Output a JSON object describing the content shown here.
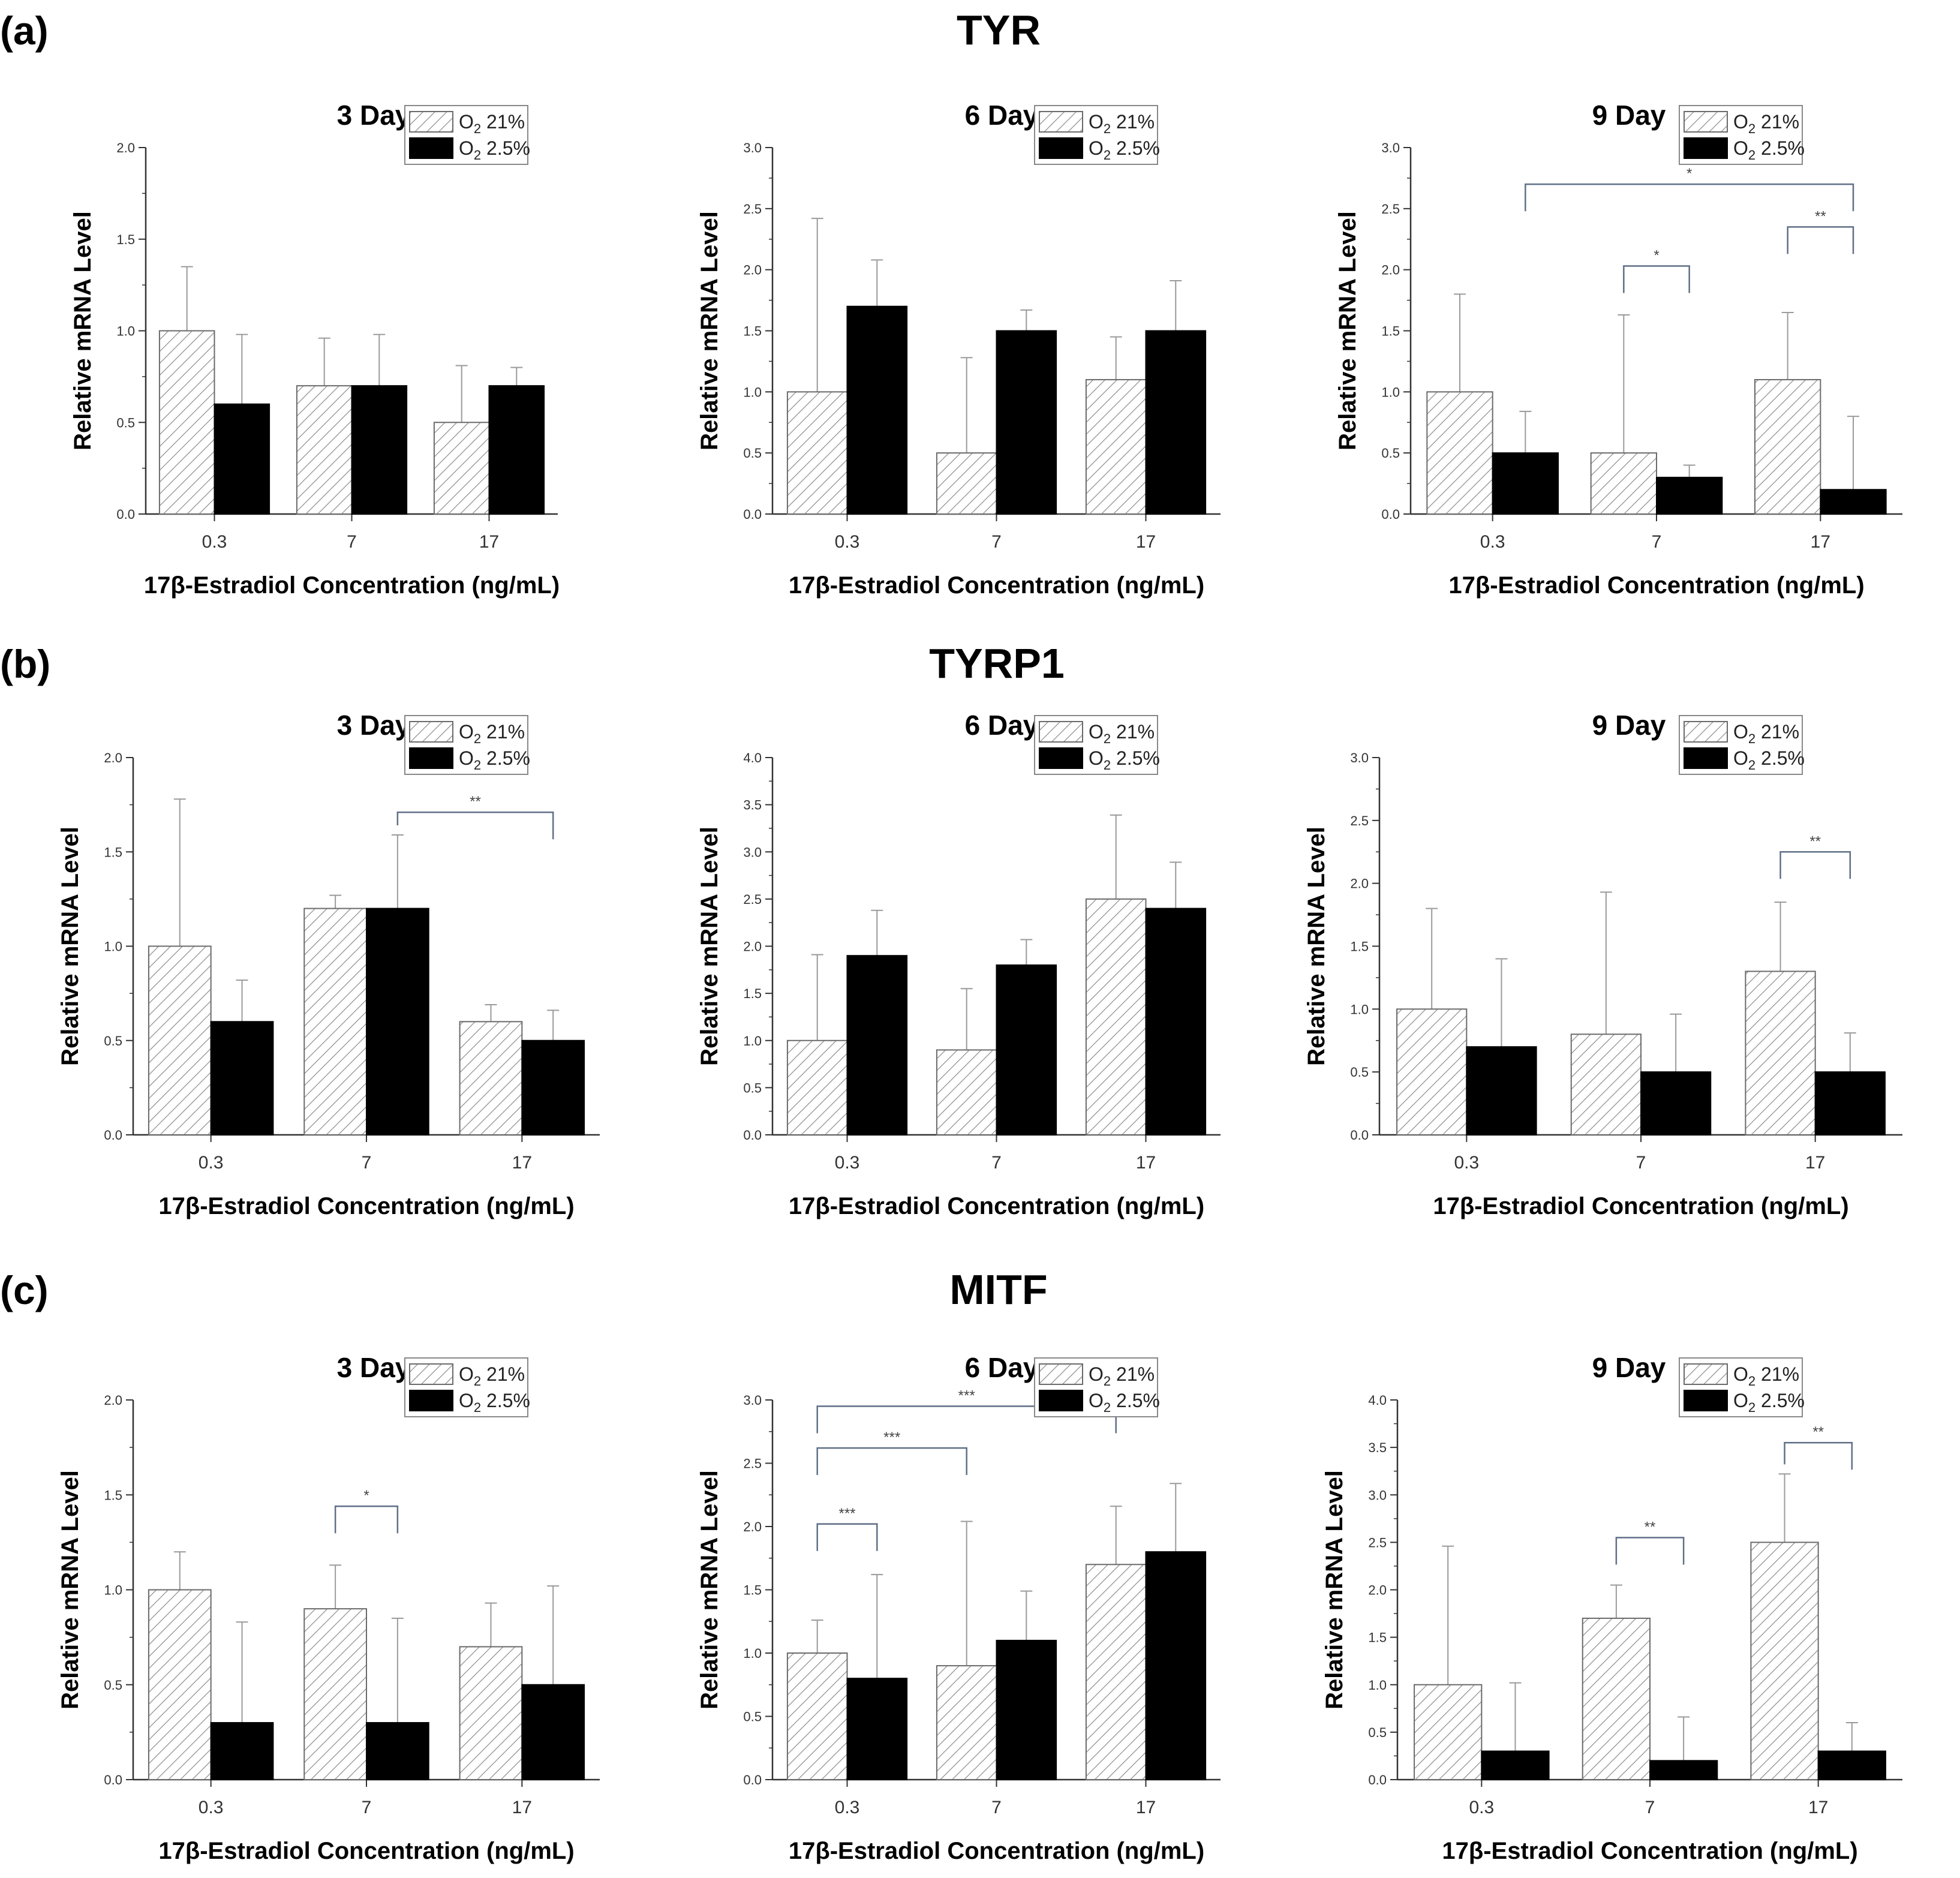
{
  "figure": {
    "panels": [
      {
        "letter": "(a)",
        "gene": "TYR"
      },
      {
        "letter": "(b)",
        "gene": "TYRP1"
      },
      {
        "letter": "(c)",
        "gene": "MITF"
      }
    ],
    "legend": {
      "series": [
        {
          "label_base": "O",
          "label_sub": "2",
          "label_rest": " 21%",
          "style": "hatched"
        },
        {
          "label_base": "O",
          "label_sub": "2",
          "label_rest": " 2.5%",
          "style": "solid"
        }
      ]
    },
    "colors": {
      "solid_bar": "#000000",
      "hatch": "#8a8a8a",
      "axis": "#333333",
      "sig_line": "#5f6f86",
      "error_bar": "#9a9a9a"
    }
  },
  "chart_data": [
    {
      "panel": 0,
      "col": 0,
      "type": "bar",
      "title": "3 Day",
      "xlabel": "17β-Estradiol Concentration (ng/mL)",
      "ylabel": "Relative mRNA Level",
      "categories": [
        "0.3",
        "7",
        "17"
      ],
      "ylim": [
        0,
        2.0
      ],
      "yticks": [
        "0.0",
        "0.5",
        "1.0",
        "1.5",
        "2.0"
      ],
      "series": [
        {
          "name": "O2 21%",
          "values": [
            1.0,
            0.7,
            0.5
          ],
          "errors": [
            0.35,
            0.26,
            0.31
          ]
        },
        {
          "name": "O2 2.5%",
          "values": [
            0.6,
            0.7,
            0.7
          ],
          "errors": [
            0.38,
            0.28,
            0.1
          ]
        }
      ],
      "significance": []
    },
    {
      "panel": 0,
      "col": 1,
      "type": "bar",
      "title": "6 Day",
      "xlabel": "17β-Estradiol Concentration (ng/mL)",
      "ylabel": "Relative mRNA Level",
      "categories": [
        "0.3",
        "7",
        "17"
      ],
      "ylim": [
        0,
        3.0
      ],
      "yticks": [
        "0.0",
        "0.5",
        "1.0",
        "1.5",
        "2.0",
        "2.5",
        "3.0"
      ],
      "series": [
        {
          "name": "O2 21%",
          "values": [
            1.0,
            0.5,
            1.1
          ],
          "errors": [
            1.42,
            0.78,
            0.35
          ]
        },
        {
          "name": "O2 2.5%",
          "values": [
            1.7,
            1.5,
            1.5
          ],
          "errors": [
            0.38,
            0.17,
            0.41
          ]
        }
      ],
      "significance": []
    },
    {
      "panel": 0,
      "col": 2,
      "type": "bar",
      "title": "9 Day",
      "xlabel": "17β-Estradiol Concentration (ng/mL)",
      "ylabel": "Relative mRNA Level",
      "categories": [
        "0.3",
        "7",
        "17"
      ],
      "ylim": [
        0,
        3.0
      ],
      "yticks": [
        "0.0",
        "0.5",
        "1.0",
        "1.5",
        "2.0",
        "2.5",
        "3.0"
      ],
      "series": [
        {
          "name": "O2 21%",
          "values": [
            1.0,
            0.5,
            1.1
          ],
          "errors": [
            0.8,
            1.13,
            0.55
          ]
        },
        {
          "name": "O2 2.5%",
          "values": [
            0.5,
            0.3,
            0.2
          ],
          "errors": [
            0.34,
            0.1,
            0.6
          ]
        }
      ],
      "significance": [
        {
          "from": [
            0,
            1
          ],
          "to": [
            2,
            1
          ],
          "y": 2.7,
          "label": "*"
        },
        {
          "from": [
            1,
            0
          ],
          "to": [
            1,
            1
          ],
          "y": 2.03,
          "label": "*"
        },
        {
          "from": [
            2,
            0
          ],
          "to": [
            2,
            1
          ],
          "y": 2.35,
          "label": "**"
        }
      ]
    },
    {
      "panel": 1,
      "col": 0,
      "type": "bar",
      "title": "3 Day",
      "xlabel": "17β-Estradiol Concentration (ng/mL)",
      "ylabel": "Relative mRNA Level",
      "categories": [
        "0.3",
        "7",
        "17"
      ],
      "ylim": [
        0,
        2.0
      ],
      "yticks": [
        "0.0",
        "0.5",
        "1.0",
        "1.5",
        "2.0"
      ],
      "series": [
        {
          "name": "O2 21%",
          "values": [
            1.0,
            1.2,
            0.6
          ],
          "errors": [
            0.78,
            0.07,
            0.09
          ]
        },
        {
          "name": "O2 2.5%",
          "values": [
            0.6,
            1.2,
            0.5
          ],
          "errors": [
            0.22,
            0.39,
            0.16
          ]
        }
      ],
      "significance": [
        {
          "from": [
            1,
            1
          ],
          "to": [
            2,
            1
          ],
          "y": 1.71,
          "label": "**"
        }
      ]
    },
    {
      "panel": 1,
      "col": 1,
      "type": "bar",
      "title": "6 Day",
      "xlabel": "17β-Estradiol Concentration (ng/mL)",
      "ylabel": "Relative mRNA Level",
      "categories": [
        "0.3",
        "7",
        "17"
      ],
      "ylim": [
        0,
        4.0
      ],
      "yticks": [
        "0.0",
        "0.5",
        "1.0",
        "1.5",
        "2.0",
        "2.5",
        "3.0",
        "3.5",
        "4.0"
      ],
      "series": [
        {
          "name": "O2 21%",
          "values": [
            1.0,
            0.9,
            2.5
          ],
          "errors": [
            0.91,
            0.65,
            0.89
          ]
        },
        {
          "name": "O2 2.5%",
          "values": [
            1.9,
            1.8,
            2.4
          ],
          "errors": [
            0.48,
            0.27,
            0.49
          ]
        }
      ],
      "significance": []
    },
    {
      "panel": 1,
      "col": 2,
      "type": "bar",
      "title": "9 Day",
      "xlabel": "17β-Estradiol Concentration (ng/mL)",
      "ylabel": "Relative mRNA Level",
      "categories": [
        "0.3",
        "7",
        "17"
      ],
      "ylim": [
        0,
        3.0
      ],
      "yticks": [
        "0.0",
        "0.5",
        "1.0",
        "1.5",
        "2.0",
        "2.5",
        "3.0"
      ],
      "series": [
        {
          "name": "O2 21%",
          "values": [
            1.0,
            0.8,
            1.3
          ],
          "errors": [
            0.8,
            1.13,
            0.55
          ]
        },
        {
          "name": "O2 2.5%",
          "values": [
            0.7,
            0.5,
            0.5
          ],
          "errors": [
            0.7,
            0.46,
            0.31
          ]
        }
      ],
      "significance": [
        {
          "from": [
            2,
            0
          ],
          "to": [
            2,
            1
          ],
          "y": 2.25,
          "label": "**"
        }
      ]
    },
    {
      "panel": 2,
      "col": 0,
      "type": "bar",
      "title": "3 Day",
      "xlabel": "17β-Estradiol Concentration (ng/mL)",
      "ylabel": "Relative mRNA Level",
      "categories": [
        "0.3",
        "7",
        "17"
      ],
      "ylim": [
        0,
        2.0
      ],
      "yticks": [
        "0.0",
        "0.5",
        "1.0",
        "1.5",
        "2.0"
      ],
      "series": [
        {
          "name": "O2 21%",
          "values": [
            1.0,
            0.9,
            0.7
          ],
          "errors": [
            0.2,
            0.23,
            0.23
          ]
        },
        {
          "name": "O2 2.5%",
          "values": [
            0.3,
            0.3,
            0.5
          ],
          "errors": [
            0.53,
            0.55,
            0.52
          ]
        }
      ],
      "significance": [
        {
          "from": [
            1,
            0
          ],
          "to": [
            1,
            1
          ],
          "y": 1.44,
          "label": "*"
        }
      ]
    },
    {
      "panel": 2,
      "col": 1,
      "type": "bar",
      "title": "6 Day",
      "xlabel": "17β-Estradiol Concentration (ng/mL)",
      "ylabel": "Relative mRNA Level",
      "categories": [
        "0.3",
        "7",
        "17"
      ],
      "ylim": [
        0,
        3.0
      ],
      "yticks": [
        "0.0",
        "0.5",
        "1.0",
        "1.5",
        "2.0",
        "2.5",
        "3.0"
      ],
      "series": [
        {
          "name": "O2 21%",
          "values": [
            1.0,
            0.9,
            1.7
          ],
          "errors": [
            0.26,
            1.14,
            0.46
          ]
        },
        {
          "name": "O2 2.5%",
          "values": [
            0.8,
            1.1,
            1.8
          ],
          "errors": [
            0.82,
            0.39,
            0.54
          ]
        }
      ],
      "significance": [
        {
          "from": [
            0,
            0
          ],
          "to": [
            2,
            0
          ],
          "y": 2.95,
          "label": "***"
        },
        {
          "from": [
            0,
            0
          ],
          "to": [
            1,
            0
          ],
          "y": 2.62,
          "label": "***"
        },
        {
          "from": [
            0,
            0
          ],
          "to": [
            0,
            1
          ],
          "y": 2.02,
          "label": "***"
        }
      ]
    },
    {
      "panel": 2,
      "col": 2,
      "type": "bar",
      "title": "9 Day",
      "xlabel": "17β-Estradiol Concentration (ng/mL)",
      "ylabel": "Relative mRNA Level",
      "categories": [
        "0.3",
        "7",
        "17"
      ],
      "ylim": [
        0,
        4.0
      ],
      "yticks": [
        "0.0",
        "0.5",
        "1.0",
        "1.5",
        "2.0",
        "2.5",
        "3.0",
        "3.5",
        "4.0"
      ],
      "series": [
        {
          "name": "O2 21%",
          "values": [
            1.0,
            1.7,
            2.5
          ],
          "errors": [
            1.46,
            0.35,
            0.72
          ]
        },
        {
          "name": "O2 2.5%",
          "values": [
            0.3,
            0.2,
            0.3
          ],
          "errors": [
            0.72,
            0.46,
            0.3
          ]
        }
      ],
      "significance": [
        {
          "from": [
            1,
            0
          ],
          "to": [
            1,
            1
          ],
          "y": 2.55,
          "label": "**"
        },
        {
          "from": [
            2,
            0
          ],
          "to": [
            2,
            1
          ],
          "y": 3.55,
          "label": "**"
        }
      ]
    }
  ]
}
